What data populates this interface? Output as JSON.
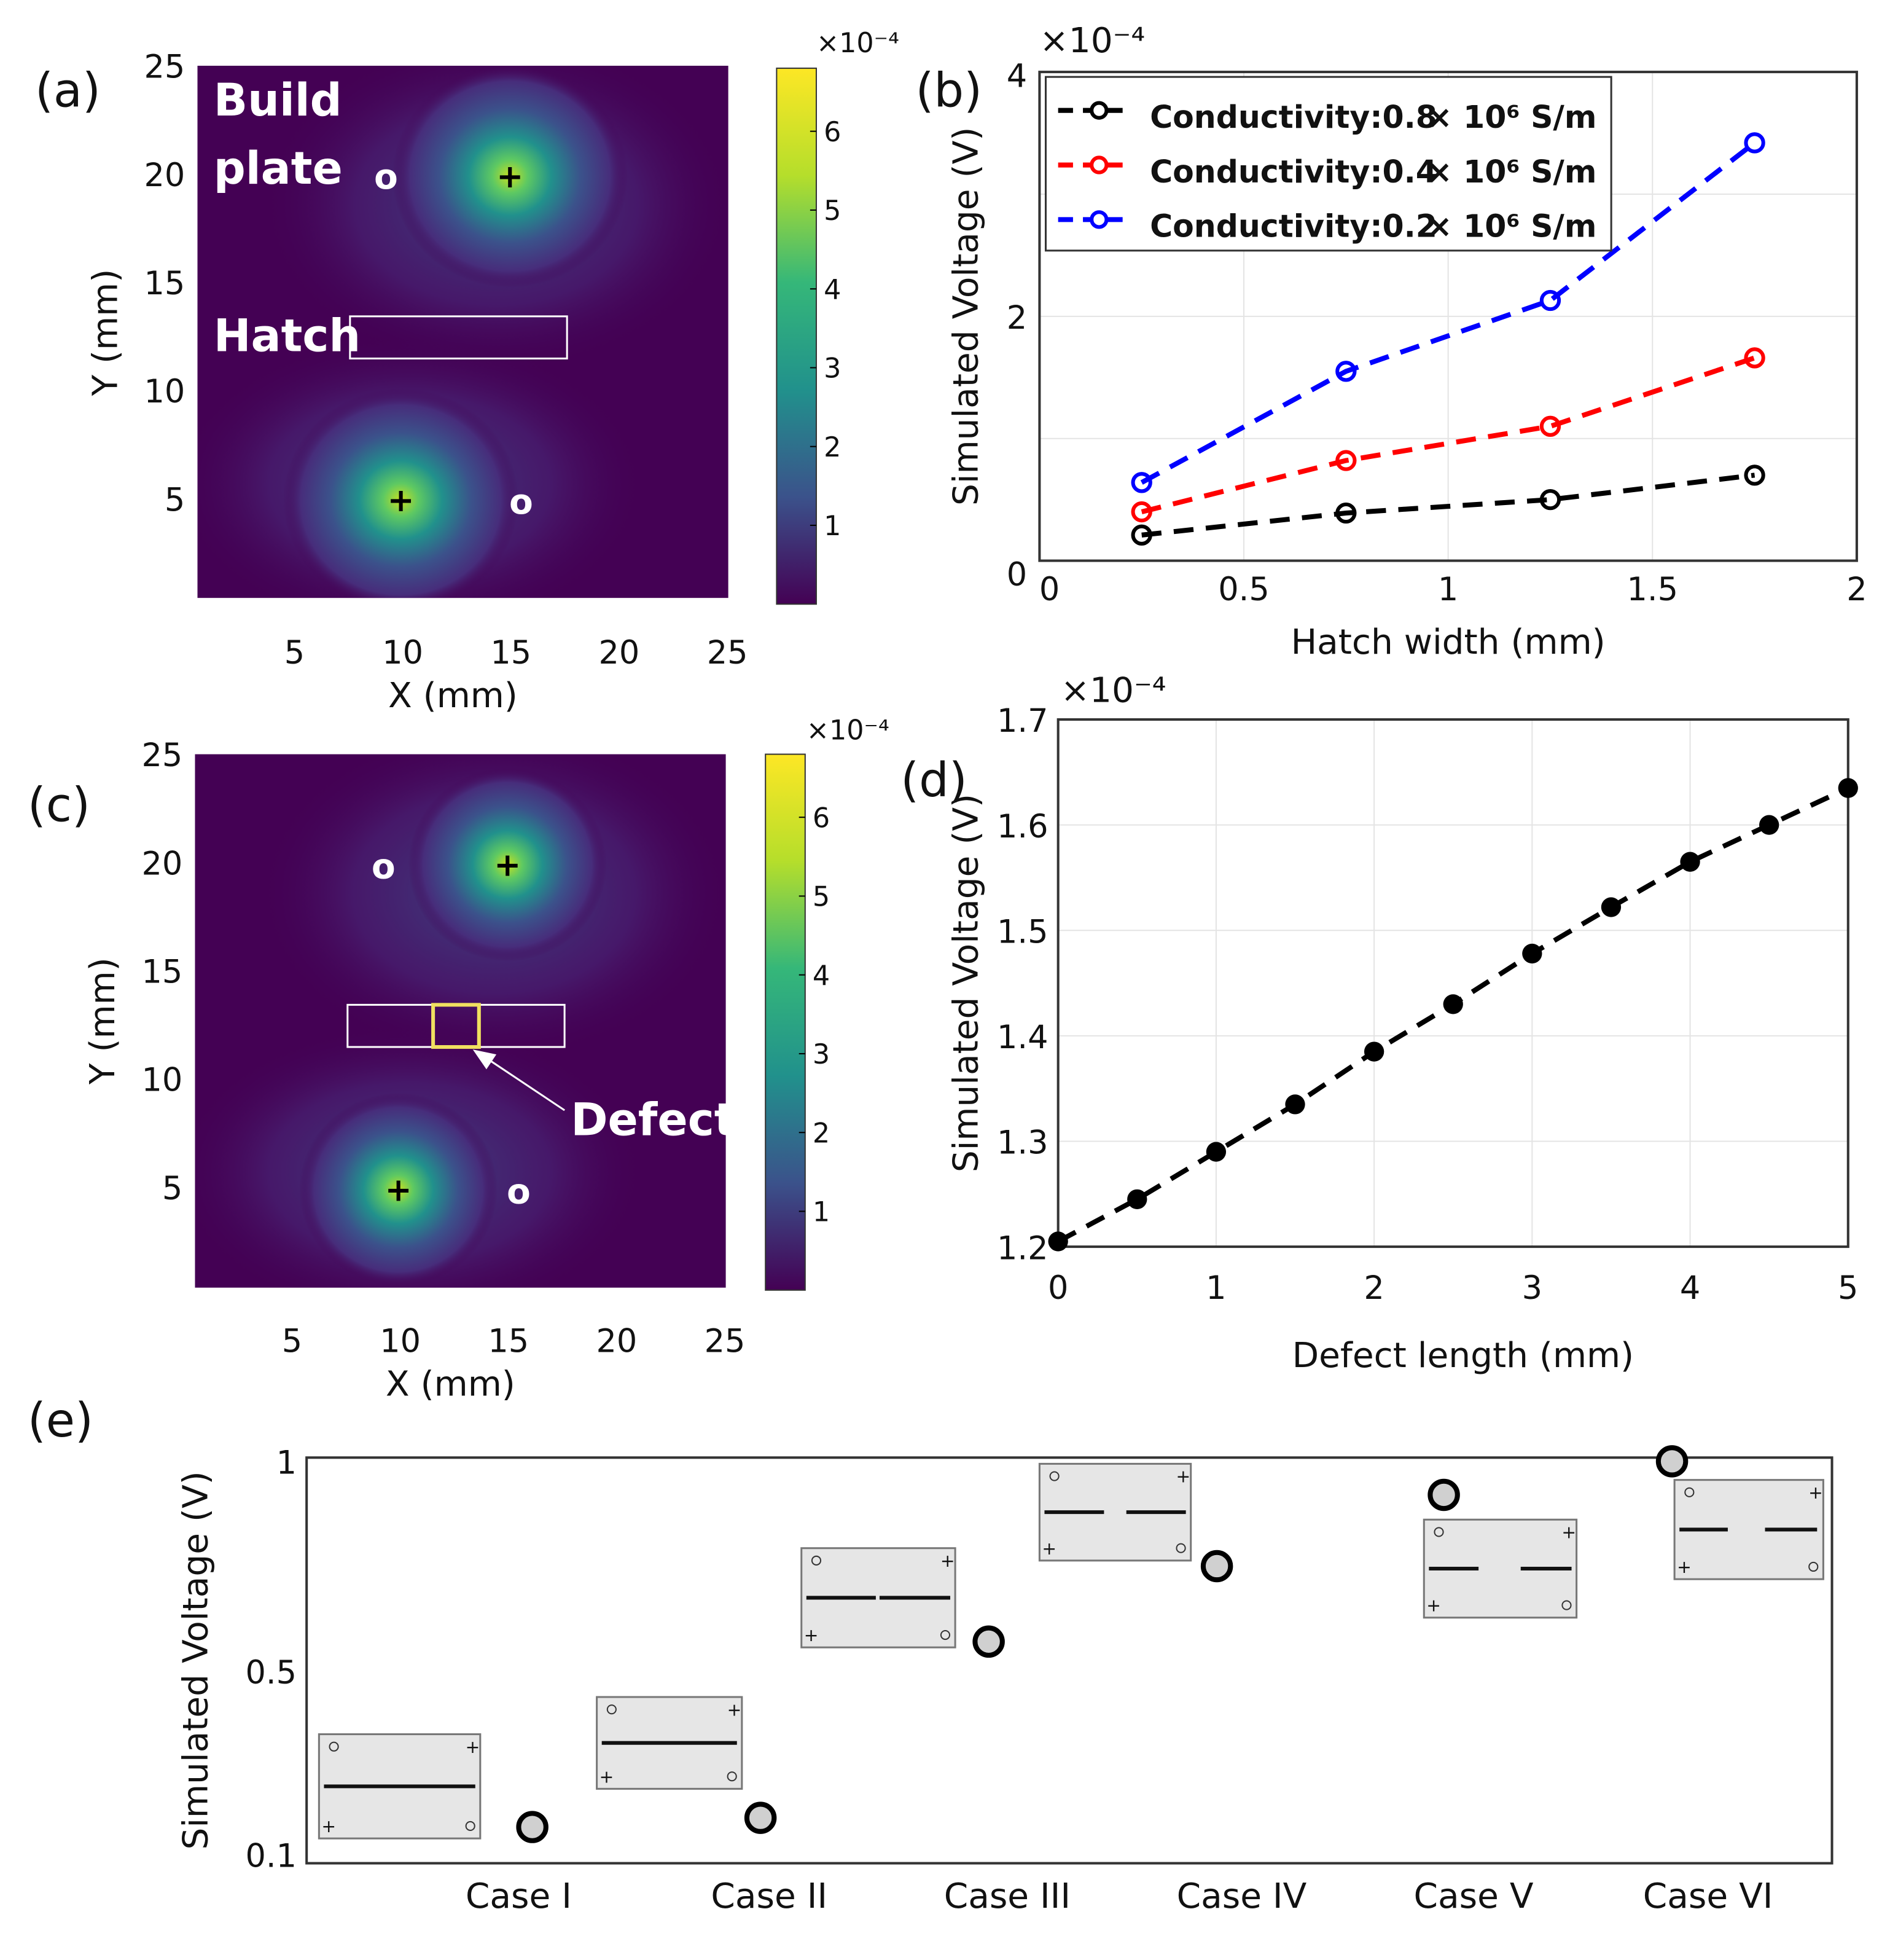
{
  "panels": {
    "a": "(a)",
    "b": "(b)",
    "c": "(c)",
    "d": "(d)",
    "e": "(e)"
  },
  "heatmap": {
    "xlabel": "X (mm)",
    "ylabel": "Y (mm)",
    "xticks": [
      "5",
      "10",
      "15",
      "20",
      "25"
    ],
    "yticks": [
      "25",
      "20",
      "15",
      "10",
      "5"
    ],
    "colorbar_ticks": [
      "1",
      "2",
      "3",
      "4",
      "5",
      "6"
    ],
    "colorbar_exp": "×10⁻⁴",
    "annotations": {
      "build": "Build",
      "plate": "plate",
      "hatch": "Hatch",
      "defect": "Defect",
      "source": "+",
      "sink": "o"
    },
    "colors": [
      "#440154",
      "#3b528b",
      "#21918c",
      "#35b779",
      "#b5de2b",
      "#fde725"
    ]
  },
  "chart_data": [
    {
      "id": "b",
      "type": "line",
      "title": "",
      "xlabel": "Hatch width (mm)",
      "ylabel": "Simulated Voltage (V)",
      "exponent": "×10⁻⁴",
      "xlim": [
        0,
        2
      ],
      "ylim": [
        0,
        4
      ],
      "xticks": [
        "0",
        "0.5",
        "1",
        "1.5",
        "2"
      ],
      "yticks": [
        "0",
        "2",
        "4"
      ],
      "x": [
        0.25,
        0.75,
        1.25,
        1.75
      ],
      "series": [
        {
          "name": "Conductivity:0.8",
          "unit": "× 10⁶ S/m",
          "color": "#000000",
          "values": [
            0.21,
            0.39,
            0.5,
            0.7
          ]
        },
        {
          "name": "Conductivity:0.4",
          "unit": "× 10⁶ S/m",
          "color": "#ff0000",
          "values": [
            0.4,
            0.82,
            1.1,
            1.66
          ]
        },
        {
          "name": "Conductivity:0.2",
          "unit": "× 10⁶ S/m",
          "color": "#0000ff",
          "values": [
            0.64,
            1.55,
            2.13,
            3.42
          ]
        }
      ],
      "legend": "top-left",
      "grid": true
    },
    {
      "id": "d",
      "type": "line",
      "xlabel": "Defect length (mm)",
      "ylabel": "Simulated Voltage (V)",
      "exponent": "×10⁻⁴",
      "xlim": [
        0,
        5
      ],
      "ylim": [
        1.2,
        1.7
      ],
      "xticks": [
        "0",
        "1",
        "2",
        "3",
        "4",
        "5"
      ],
      "yticks": [
        "1.2",
        "1.3",
        "1.4",
        "1.5",
        "1.6",
        "1.7"
      ],
      "x": [
        0,
        0.5,
        1,
        1.5,
        2,
        2.5,
        3,
        3.5,
        4,
        4.5,
        5
      ],
      "values": [
        1.205,
        1.245,
        1.29,
        1.335,
        1.385,
        1.43,
        1.478,
        1.522,
        1.565,
        1.6,
        1.635
      ],
      "grid": true
    },
    {
      "id": "e",
      "type": "scatter",
      "xlabel": "",
      "ylabel": "Simulated Voltage (V)",
      "ylim": [
        0.1,
        1
      ],
      "yticks": [
        "0.1",
        "0.5",
        "1"
      ],
      "categories": [
        "Case I",
        "Case II",
        "Case III",
        "Case IV",
        "Case V",
        "Case VI"
      ],
      "values": [
        0.16,
        0.18,
        0.57,
        0.75,
        0.92,
        1.0
      ]
    }
  ]
}
